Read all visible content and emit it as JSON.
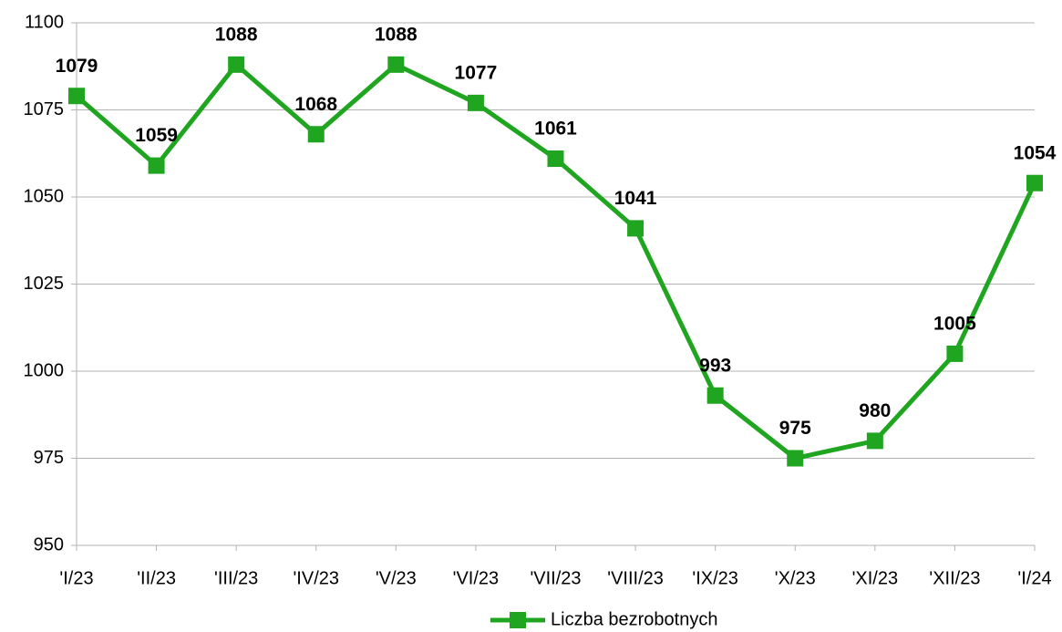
{
  "chart_data": {
    "type": "line",
    "categories": [
      "'I/23",
      "'II/23",
      "'III/23",
      "'IV/23",
      "'V/23",
      "'VI/23",
      "'VII/23",
      "'VIII/23",
      "'IX/23",
      "'X/23",
      "'XI/23",
      "'XII/23",
      "'I/24"
    ],
    "series": [
      {
        "name": "Liczba bezrobotnych",
        "color": "#1fa51f",
        "values": [
          1079,
          1059,
          1088,
          1068,
          1088,
          1077,
          1061,
          1041,
          993,
          975,
          980,
          1005,
          1054
        ]
      }
    ],
    "ylim": [
      950,
      1100
    ],
    "yticks": [
      950,
      975,
      1000,
      1025,
      1050,
      1075,
      1100
    ],
    "grid": true,
    "legend": "bottom"
  }
}
